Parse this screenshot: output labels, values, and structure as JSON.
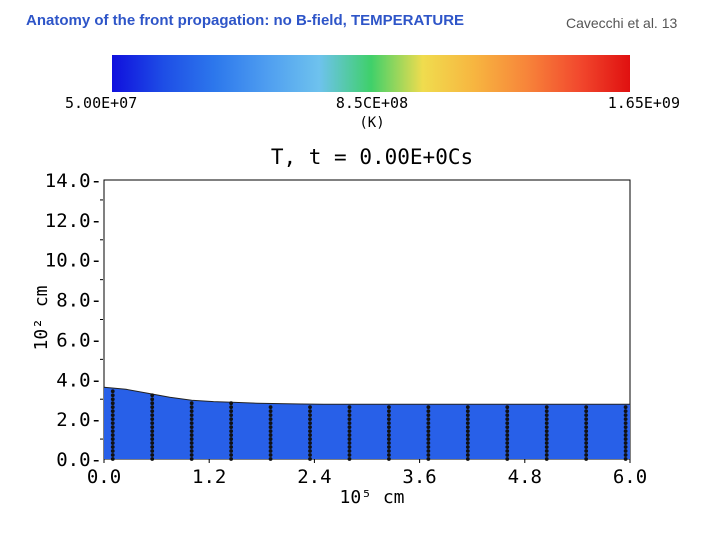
{
  "slide": {
    "title": "Anatomy of the front propagation: no B-field, TEMPERATURE",
    "credit": "Cavecchi et al. 13"
  },
  "colorbar": {
    "min_label": "5.00E+07",
    "mid_label": "8.5CE+08",
    "max_label": "1.65E+09",
    "unit_label": "(K)",
    "colors": [
      "#1010dd",
      "#1e4ee6",
      "#2d78ec",
      "#4f9ef0",
      "#6ec2ee",
      "#3fd06a",
      "#f0dc4e",
      "#f7b540",
      "#f7853a",
      "#f24a2e",
      "#e01010"
    ]
  },
  "chart_data": {
    "type": "area",
    "title": "T, t = 0.00E+0Cs",
    "xlabel": "10⁵ cm",
    "ylabel": "10² cm",
    "xlim": [
      0.0,
      6.0
    ],
    "ylim": [
      0.0,
      14.0
    ],
    "x_ticks": [
      "0.0",
      "1.2",
      "2.4",
      "3.6",
      "4.8",
      "6.0"
    ],
    "y_ticks": [
      "0.0",
      "2.0",
      "4.0",
      "6.0",
      "8.0",
      "10.0",
      "12.0",
      "14.0"
    ],
    "fill_color": "#2860e8",
    "boundary": {
      "x": [
        0.0,
        0.25,
        0.5,
        0.75,
        1.0,
        1.25,
        1.5,
        1.75,
        2.0,
        2.25,
        2.5,
        3.0,
        3.5,
        4.0,
        4.5,
        5.0,
        5.5,
        6.0
      ],
      "y": [
        3.6,
        3.5,
        3.3,
        3.1,
        2.95,
        2.88,
        2.84,
        2.8,
        2.78,
        2.76,
        2.75,
        2.75,
        2.75,
        2.75,
        2.75,
        2.75,
        2.75,
        2.75
      ]
    },
    "markers": {
      "x": [
        0.1,
        0.55,
        1.0,
        1.45,
        1.9,
        2.35,
        2.8,
        3.25,
        3.7,
        4.15,
        4.6,
        5.05,
        5.5,
        5.95
      ],
      "y_step": 0.2
    }
  }
}
